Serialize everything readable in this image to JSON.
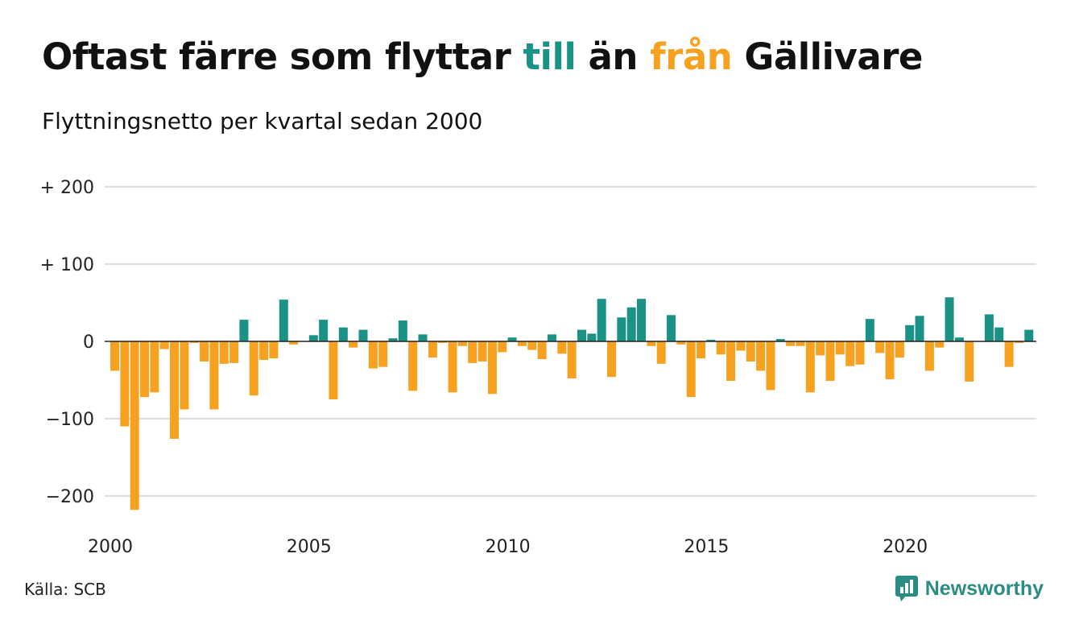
{
  "title": {
    "part1": "Oftast färre som flyttar ",
    "till": "till",
    "part2": " än ",
    "fran": "från",
    "part3": " Gällivare"
  },
  "subtitle": "Flyttningsnetto per kvartal sedan 2000",
  "source": "Källa: SCB",
  "brand": {
    "name": "Newsworthy",
    "icon": "chart-bubble-icon",
    "color": "#2a8c82"
  },
  "colors": {
    "positive": "#1a9285",
    "negative": "#f6a11f",
    "grid": "#dddddd",
    "baseline": "#222222"
  },
  "chart_data": {
    "type": "bar",
    "title": "Oftast färre som flyttar till än från Gällivare",
    "subtitle": "Flyttningsnetto per kvartal sedan 2000",
    "xlabel": "",
    "ylabel": "",
    "x_start": 2000,
    "x_step": 0.25,
    "ylim": [
      -240,
      200
    ],
    "y_ticks": [
      200,
      100,
      0,
      -100,
      -200
    ],
    "y_tick_labels": [
      "+ 200",
      "+ 100",
      "0",
      "−100",
      "−200"
    ],
    "x_ticks": [
      2000,
      2005,
      2010,
      2015,
      2020
    ],
    "x_tick_labels": [
      "2000",
      "2005",
      "2010",
      "2015",
      "2020"
    ],
    "grid": true,
    "values": [
      -38,
      -110,
      -218,
      -72,
      -66,
      -10,
      -126,
      -88,
      -2,
      -26,
      -88,
      -29,
      -28,
      28,
      -70,
      -24,
      -22,
      54,
      -4,
      0,
      8,
      28,
      -75,
      18,
      -8,
      15,
      -35,
      -33,
      4,
      27,
      -64,
      9,
      -21,
      -2,
      -66,
      -6,
      -28,
      -26,
      -68,
      -14,
      5,
      -6,
      -11,
      -23,
      9,
      -16,
      -48,
      15,
      10,
      55,
      -46,
      31,
      44,
      55,
      -6,
      -29,
      34,
      -4,
      -72,
      -22,
      2,
      -17,
      -51,
      -12,
      -26,
      -38,
      -63,
      3,
      -6,
      -6,
      -66,
      -18,
      -51,
      -17,
      -32,
      -30,
      29,
      -15,
      -49,
      -21,
      21,
      33,
      -38,
      -8,
      57,
      5,
      -52,
      0,
      35,
      18,
      -33,
      -2,
      15
    ]
  }
}
